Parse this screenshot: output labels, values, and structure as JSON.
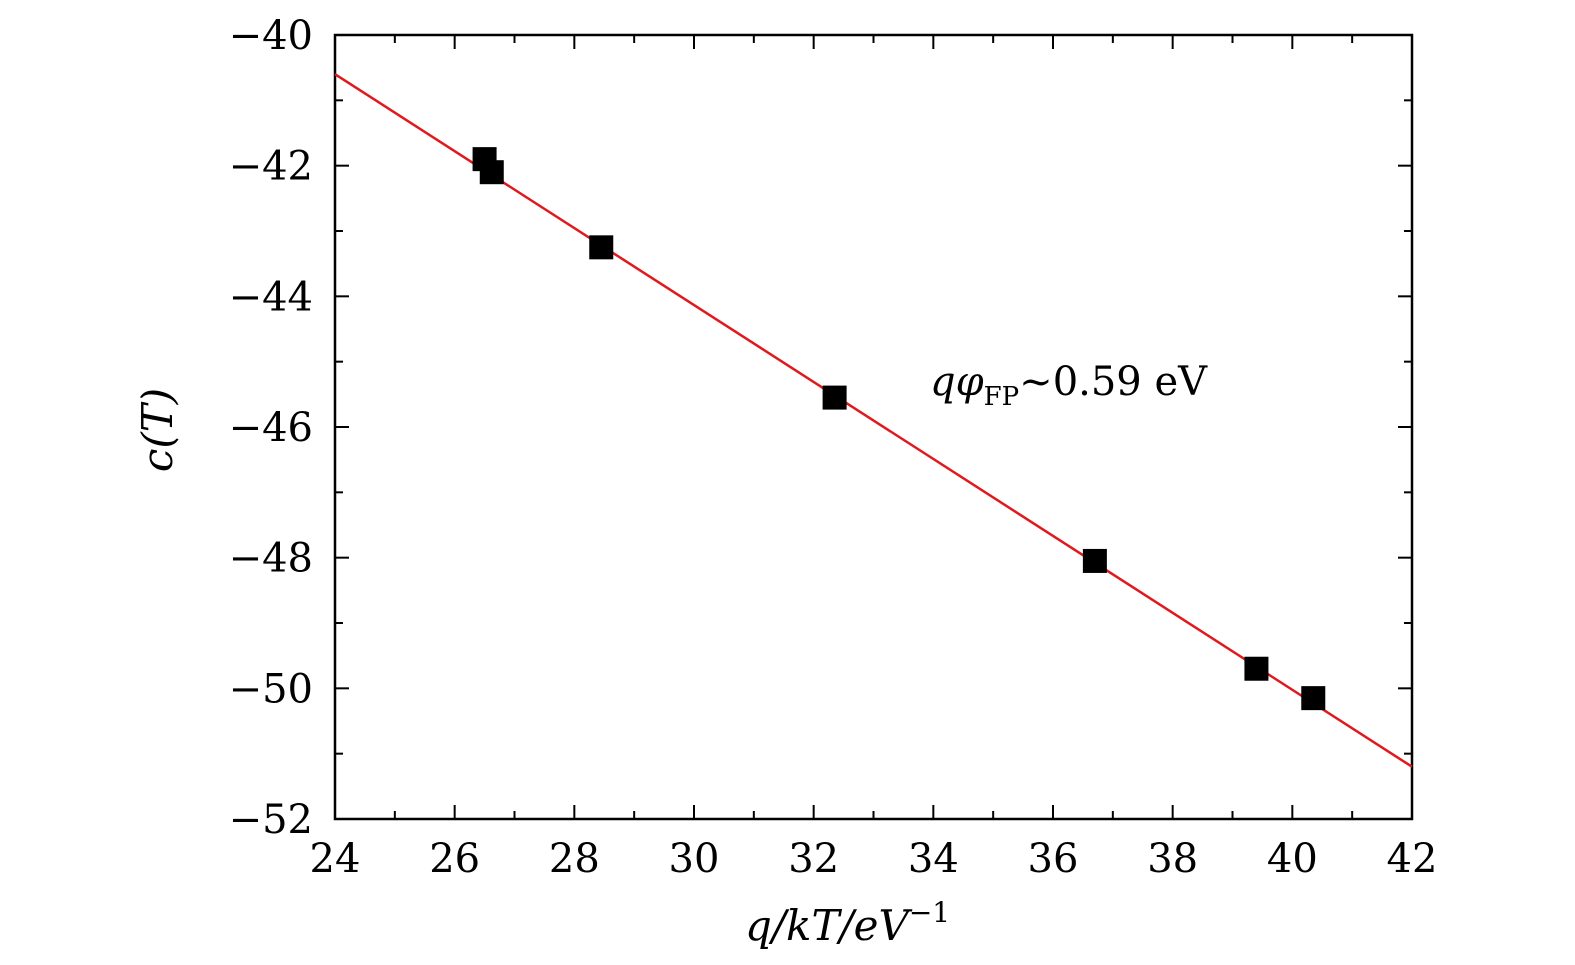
{
  "chart_data": {
    "type": "scatter",
    "x_axis": {
      "label_main": "q/kT/eV",
      "label_sup": "−1",
      "range": [
        24,
        42
      ],
      "ticks": [
        24,
        26,
        28,
        30,
        32,
        34,
        36,
        38,
        40,
        42
      ],
      "tick_labels": [
        "24",
        "26",
        "28",
        "30",
        "32",
        "34",
        "36",
        "38",
        "40",
        "42"
      ]
    },
    "y_axis": {
      "label": "c(T)",
      "range": [
        -52,
        -40
      ],
      "ticks": [
        -52,
        -50,
        -48,
        -46,
        -44,
        -42,
        -40
      ],
      "tick_labels": [
        "−52",
        "−50",
        "−48",
        "−46",
        "−44",
        "−42",
        "−40"
      ]
    },
    "series": [
      {
        "kind": "points",
        "marker": "square",
        "color": "#000000",
        "x": [
          26.5,
          26.62,
          28.45,
          32.35,
          36.7,
          39.4,
          40.35
        ],
        "y": [
          -41.9,
          -42.1,
          -43.25,
          -45.55,
          -48.05,
          -49.7,
          -50.15
        ]
      },
      {
        "kind": "fit-line",
        "color": "#e0191e",
        "x": [
          24,
          42
        ],
        "y": [
          -40.6,
          -51.2
        ]
      }
    ],
    "annotation": {
      "main": "qφ",
      "sub": "FP",
      "tail": "~0.59 eV"
    },
    "grid": false,
    "legend": "none"
  }
}
